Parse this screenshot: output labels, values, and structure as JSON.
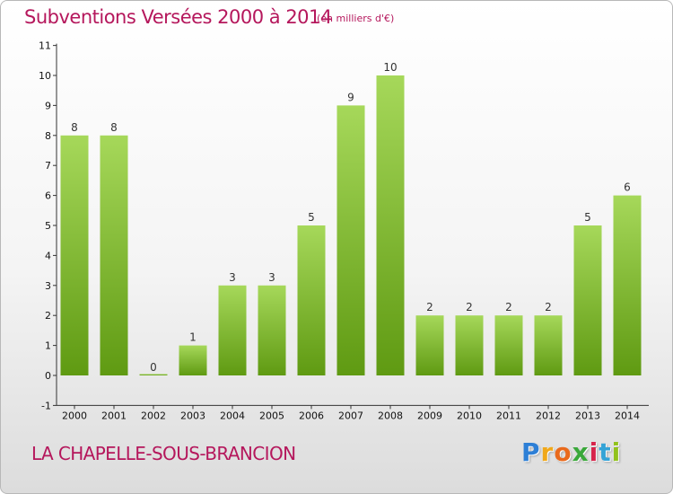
{
  "header": {
    "title": "Subventions Versées 2000 à 2014",
    "subtitle": "(en milliers d'€)"
  },
  "footer": {
    "commune": "LA CHAPELLE-SOUS-BRANCION",
    "logo": {
      "text": "Proxiti",
      "letters": [
        {
          "ch": "P",
          "color": "#2d7fd6"
        },
        {
          "ch": "r",
          "color": "#f0a81a"
        },
        {
          "ch": "o",
          "color": "#e96a1c"
        },
        {
          "ch": "x",
          "color": "#3aa83a"
        },
        {
          "ch": "i",
          "color": "#d6244a"
        },
        {
          "ch": "t",
          "color": "#35a3d6"
        },
        {
          "ch": "i",
          "color": "#92c21d"
        }
      ]
    }
  },
  "colors": {
    "bar_light": "#a6d85a",
    "bar_dark": "#5f9a12",
    "title": "#b5175c"
  },
  "chart_data": {
    "type": "bar",
    "categories": [
      "2000",
      "2001",
      "2002",
      "2003",
      "2004",
      "2005",
      "2006",
      "2007",
      "2008",
      "2009",
      "2010",
      "2011",
      "2012",
      "2013",
      "2014"
    ],
    "values": [
      8,
      8,
      0,
      1,
      3,
      3,
      5,
      9,
      10,
      2,
      2,
      2,
      2,
      5,
      6
    ],
    "y_ticks": [
      "-1",
      "0",
      "1",
      "2",
      "3",
      "4",
      "5",
      "6",
      "7",
      "8",
      "9",
      "10",
      "11"
    ],
    "ylim": [
      -1,
      11
    ],
    "grid": false,
    "legend": "none"
  }
}
